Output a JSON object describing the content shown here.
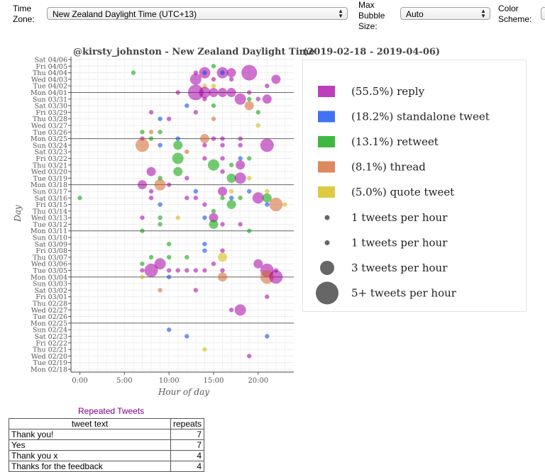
{
  "controls": {
    "timezone_label": "Time\nZone:",
    "timezone_value": "New Zealand Daylight Time (UTC+13)",
    "bubble_label": "Max\nBubble\nSize:",
    "bubble_value": "Auto",
    "scheme_label": "Color\nScheme:"
  },
  "chart_title": "@kirsty_johnston - New Zealand Daylight Time",
  "chart_range": "(2019-02-18 - 2019-04-06)",
  "colors": {
    "reply": "#a500a5",
    "standalone tweet": "#0044ee",
    "retweet": "#00a000",
    "thread": "#d2622a",
    "quote tweet": "#d2b800"
  },
  "chart_data": {
    "type": "scatter",
    "xlabel": "Hour of day",
    "ylabel": "Day",
    "xlim": [
      -1,
      24
    ],
    "x_ticks": [
      "0:00",
      "5:00",
      "10:00",
      "15:00",
      "20:00"
    ],
    "y_labels": [
      "Sat 04/06",
      "Fri 04/05",
      "Thu 04/04",
      "Wed 04/03",
      "Tue 04/02",
      "Mon 04/01",
      "Sun 03/31",
      "Sat 03/30",
      "Fri 03/29",
      "Thu 03/28",
      "Wed 03/27",
      "Tue 03/26",
      "Mon 03/25",
      "Sun 03/24",
      "Sat 03/23",
      "Fri 03/22",
      "Thu 03/21",
      "Wed 03/20",
      "Tue 03/19",
      "Mon 03/18",
      "Sun 03/17",
      "Sat 03/16",
      "Fri 03/15",
      "Thu 03/14",
      "Wed 03/13",
      "Tue 03/12",
      "Mon 03/11",
      "Sun 03/10",
      "Sat 03/09",
      "Fri 03/08",
      "Thu 03/07",
      "Wed 03/06",
      "Tue 03/05",
      "Mon 03/04",
      "Sun 03/03",
      "Sat 03/02",
      "Fri 03/01",
      "Thu 02/28",
      "Wed 02/27",
      "Tue 02/26",
      "Mon 02/25",
      "Sun 02/24",
      "Sat 02/23",
      "Fri 02/22",
      "Thu 02/21",
      "Wed 02/20",
      "Tue 02/19",
      "Mon 02/18"
    ],
    "week_lines": [
      "Mon 04/01",
      "Mon 03/25",
      "Mon 03/18",
      "Mon 03/11",
      "Mon 03/04",
      "Mon 02/25"
    ],
    "legend": [
      {
        "label": "(55.5%) reply",
        "type": "reply"
      },
      {
        "label": "(18.2%) standalone tweet",
        "type": "standalone tweet"
      },
      {
        "label": "(13.1%) retweet",
        "type": "retweet"
      },
      {
        "label": "(8.1%) thread",
        "type": "thread"
      },
      {
        "label": "(5.0%) quote tweet",
        "type": "quote tweet"
      }
    ],
    "size_legend": [
      {
        "label": "1 tweets per hour",
        "count": 1
      },
      {
        "label": "1 tweets per hour",
        "count": 1
      },
      {
        "label": "3 tweets per hour",
        "count": 3
      },
      {
        "label": "5+ tweets per hour",
        "count": 5
      }
    ],
    "points": [
      {
        "day": "Fri 04/05",
        "hour": 15,
        "type": "retweet",
        "count": 1
      },
      {
        "day": "Thu 04/04",
        "hour": 6,
        "type": "retweet",
        "count": 1
      },
      {
        "day": "Thu 04/04",
        "hour": 13,
        "type": "reply",
        "count": 1
      },
      {
        "day": "Thu 04/04",
        "hour": 14,
        "type": "reply",
        "count": 3
      },
      {
        "day": "Thu 04/04",
        "hour": 14,
        "type": "standalone tweet",
        "count": 1
      },
      {
        "day": "Thu 04/04",
        "hour": 16,
        "type": "reply",
        "count": 3
      },
      {
        "day": "Thu 04/04",
        "hour": 16,
        "type": "standalone tweet",
        "count": 1
      },
      {
        "day": "Thu 04/04",
        "hour": 17,
        "type": "reply",
        "count": 2
      },
      {
        "day": "Thu 04/04",
        "hour": 19,
        "type": "reply",
        "count": 5
      },
      {
        "day": "Wed 04/03",
        "hour": 13,
        "type": "reply",
        "count": 3
      },
      {
        "day": "Wed 04/03",
        "hour": 15,
        "type": "reply",
        "count": 1
      },
      {
        "day": "Wed 04/03",
        "hour": 17,
        "type": "reply",
        "count": 1
      },
      {
        "day": "Wed 04/03",
        "hour": 22,
        "type": "reply",
        "count": 2
      },
      {
        "day": "Tue 04/02",
        "hour": 14,
        "type": "quote tweet",
        "count": 1
      },
      {
        "day": "Tue 04/02",
        "hour": 15,
        "type": "quote tweet",
        "count": 1
      },
      {
        "day": "Tue 04/02",
        "hour": 21,
        "type": "reply",
        "count": 1
      },
      {
        "day": "Mon 04/01",
        "hour": 11,
        "type": "reply",
        "count": 1
      },
      {
        "day": "Mon 04/01",
        "hour": 13,
        "type": "reply",
        "count": 5
      },
      {
        "day": "Mon 04/01",
        "hour": 14,
        "type": "reply",
        "count": 3
      },
      {
        "day": "Mon 04/01",
        "hour": 15,
        "type": "reply",
        "count": 2
      },
      {
        "day": "Mon 04/01",
        "hour": 16,
        "type": "reply",
        "count": 2
      },
      {
        "day": "Mon 04/01",
        "hour": 17,
        "type": "reply",
        "count": 2
      },
      {
        "day": "Mon 04/01",
        "hour": 19,
        "type": "reply",
        "count": 1
      },
      {
        "day": "Sun 03/31",
        "hour": 14,
        "type": "reply",
        "count": 1
      },
      {
        "day": "Sun 03/31",
        "hour": 18,
        "type": "reply",
        "count": 3
      },
      {
        "day": "Sun 03/31",
        "hour": 19,
        "type": "retweet",
        "count": 1
      },
      {
        "day": "Sun 03/31",
        "hour": 20,
        "type": "reply",
        "count": 1
      },
      {
        "day": "Sun 03/31",
        "hour": 21,
        "type": "reply",
        "count": 2
      },
      {
        "day": "Sat 03/30",
        "hour": 12,
        "type": "standalone tweet",
        "count": 1
      },
      {
        "day": "Sat 03/30",
        "hour": 15,
        "type": "retweet",
        "count": 1
      },
      {
        "day": "Sat 03/30",
        "hour": 19,
        "type": "thread",
        "count": 2
      },
      {
        "day": "Fri 03/29",
        "hour": 8,
        "type": "reply",
        "count": 1
      },
      {
        "day": "Fri 03/29",
        "hour": 13,
        "type": "reply",
        "count": 1
      },
      {
        "day": "Fri 03/29",
        "hour": 20,
        "type": "retweet",
        "count": 1
      },
      {
        "day": "Thu 03/28",
        "hour": 9,
        "type": "standalone tweet",
        "count": 1
      },
      {
        "day": "Thu 03/28",
        "hour": 10,
        "type": "reply",
        "count": 1
      },
      {
        "day": "Thu 03/28",
        "hour": 15,
        "type": "thread",
        "count": 1
      },
      {
        "day": "Wed 03/27",
        "hour": 20,
        "type": "quote tweet",
        "count": 1
      },
      {
        "day": "Tue 03/26",
        "hour": 7,
        "type": "retweet",
        "count": 1
      },
      {
        "day": "Tue 03/26",
        "hour": 8,
        "type": "thread",
        "count": 1
      },
      {
        "day": "Tue 03/26",
        "hour": 9,
        "type": "retweet",
        "count": 1
      },
      {
        "day": "Mon 03/25",
        "hour": 7,
        "type": "reply",
        "count": 1
      },
      {
        "day": "Mon 03/25",
        "hour": 8,
        "type": "retweet",
        "count": 1
      },
      {
        "day": "Mon 03/25",
        "hour": 11,
        "type": "standalone tweet",
        "count": 1
      },
      {
        "day": "Mon 03/25",
        "hour": 14,
        "type": "thread",
        "count": 2
      },
      {
        "day": "Mon 03/25",
        "hour": 15,
        "type": "reply",
        "count": 1
      },
      {
        "day": "Mon 03/25",
        "hour": 16,
        "type": "reply",
        "count": 1
      },
      {
        "day": "Mon 03/25",
        "hour": 18,
        "type": "reply",
        "count": 1
      },
      {
        "day": "Sun 03/24",
        "hour": 7,
        "type": "thread",
        "count": 4
      },
      {
        "day": "Sun 03/24",
        "hour": 9,
        "type": "standalone tweet",
        "count": 1
      },
      {
        "day": "Sun 03/24",
        "hour": 11,
        "type": "retweet",
        "count": 2
      },
      {
        "day": "Sun 03/24",
        "hour": 14,
        "type": "reply",
        "count": 1
      },
      {
        "day": "Sun 03/24",
        "hour": 16,
        "type": "reply",
        "count": 1
      },
      {
        "day": "Sun 03/24",
        "hour": 18,
        "type": "reply",
        "count": 1
      },
      {
        "day": "Sun 03/24",
        "hour": 21,
        "type": "reply",
        "count": 4
      },
      {
        "day": "Sat 03/23",
        "hour": 12,
        "type": "thread",
        "count": 1
      },
      {
        "day": "Fri 03/22",
        "hour": 11,
        "type": "retweet",
        "count": 3
      },
      {
        "day": "Fri 03/22",
        "hour": 14,
        "type": "reply",
        "count": 1
      },
      {
        "day": "Fri 03/22",
        "hour": 16,
        "type": "reply",
        "count": 1
      },
      {
        "day": "Fri 03/22",
        "hour": 18,
        "type": "standalone tweet",
        "count": 1
      },
      {
        "day": "Fri 03/22",
        "hour": 19,
        "type": "retweet",
        "count": 1
      },
      {
        "day": "Thu 03/21",
        "hour": 15,
        "type": "retweet",
        "count": 3
      },
      {
        "day": "Thu 03/21",
        "hour": 17,
        "type": "retweet",
        "count": 1
      },
      {
        "day": "Thu 03/21",
        "hour": 18,
        "type": "reply",
        "count": 2
      },
      {
        "day": "Wed 03/20",
        "hour": 8,
        "type": "reply",
        "count": 2
      },
      {
        "day": "Wed 03/20",
        "hour": 11,
        "type": "retweet",
        "count": 2
      },
      {
        "day": "Wed 03/20",
        "hour": 16,
        "type": "reply",
        "count": 1
      },
      {
        "day": "Tue 03/19",
        "hour": 9,
        "type": "retweet",
        "count": 1
      },
      {
        "day": "Tue 03/19",
        "hour": 12,
        "type": "reply",
        "count": 1
      },
      {
        "day": "Tue 03/19",
        "hour": 17,
        "type": "retweet",
        "count": 2
      },
      {
        "day": "Tue 03/19",
        "hour": 18,
        "type": "reply",
        "count": 3
      },
      {
        "day": "Tue 03/19",
        "hour": 19,
        "type": "quote tweet",
        "count": 1
      },
      {
        "day": "Mon 03/18",
        "hour": 7,
        "type": "reply",
        "count": 2
      },
      {
        "day": "Mon 03/18",
        "hour": 9,
        "type": "thread",
        "count": 3
      },
      {
        "day": "Mon 03/18",
        "hour": 10,
        "type": "reply",
        "count": 1
      },
      {
        "day": "Sun 03/17",
        "hour": 8,
        "type": "reply",
        "count": 1
      },
      {
        "day": "Sun 03/17",
        "hour": 13,
        "type": "standalone tweet",
        "count": 1
      },
      {
        "day": "Sun 03/17",
        "hour": 16,
        "type": "reply",
        "count": 2
      },
      {
        "day": "Sun 03/17",
        "hour": 17,
        "type": "quote tweet",
        "count": 1
      },
      {
        "day": "Sun 03/17",
        "hour": 19,
        "type": "standalone tweet",
        "count": 1
      },
      {
        "day": "Sun 03/17",
        "hour": 21,
        "type": "quote tweet",
        "count": 1
      },
      {
        "day": "Sat 03/16",
        "hour": 0,
        "type": "retweet",
        "count": 1
      },
      {
        "day": "Sat 03/16",
        "hour": 8,
        "type": "reply",
        "count": 1
      },
      {
        "day": "Sat 03/16",
        "hour": 12,
        "type": "reply",
        "count": 1
      },
      {
        "day": "Sat 03/16",
        "hour": 13,
        "type": "reply",
        "count": 1
      },
      {
        "day": "Sat 03/16",
        "hour": 16,
        "type": "retweet",
        "count": 1
      },
      {
        "day": "Sat 03/16",
        "hour": 17,
        "type": "standalone tweet",
        "count": 1
      },
      {
        "day": "Sat 03/16",
        "hour": 18,
        "type": "retweet",
        "count": 1
      },
      {
        "day": "Sat 03/16",
        "hour": 20,
        "type": "reply",
        "count": 3
      },
      {
        "day": "Sat 03/16",
        "hour": 21,
        "type": "retweet",
        "count": 2
      },
      {
        "day": "Fri 03/15",
        "hour": 9,
        "type": "standalone tweet",
        "count": 1
      },
      {
        "day": "Fri 03/15",
        "hour": 14,
        "type": "reply",
        "count": 1
      },
      {
        "day": "Fri 03/15",
        "hour": 17,
        "type": "retweet",
        "count": 2
      },
      {
        "day": "Fri 03/15",
        "hour": 21,
        "type": "standalone tweet",
        "count": 1
      },
      {
        "day": "Fri 03/15",
        "hour": 22,
        "type": "thread",
        "count": 4
      },
      {
        "day": "Fri 03/15",
        "hour": 23,
        "type": "quote tweet",
        "count": 1
      },
      {
        "day": "Thu 03/14",
        "hour": 15,
        "type": "retweet",
        "count": 1
      },
      {
        "day": "Wed 03/13",
        "hour": 7,
        "type": "reply",
        "count": 1
      },
      {
        "day": "Wed 03/13",
        "hour": 9,
        "type": "retweet",
        "count": 1
      },
      {
        "day": "Wed 03/13",
        "hour": 11,
        "type": "quote tweet",
        "count": 1
      },
      {
        "day": "Wed 03/13",
        "hour": 14,
        "type": "standalone tweet",
        "count": 1
      },
      {
        "day": "Wed 03/13",
        "hour": 15,
        "type": "reply",
        "count": 2
      },
      {
        "day": "Tue 03/12",
        "hour": 9,
        "type": "retweet",
        "count": 1
      },
      {
        "day": "Tue 03/12",
        "hour": 15,
        "type": "retweet",
        "count": 2
      },
      {
        "day": "Tue 03/12",
        "hour": 16,
        "type": "reply",
        "count": 1
      },
      {
        "day": "Tue 03/12",
        "hour": 18,
        "type": "reply",
        "count": 1
      },
      {
        "day": "Mon 03/11",
        "hour": 7,
        "type": "retweet",
        "count": 1
      },
      {
        "day": "Mon 03/11",
        "hour": 19,
        "type": "retweet",
        "count": 1
      },
      {
        "day": "Sat 03/09",
        "hour": 10,
        "type": "retweet",
        "count": 1
      },
      {
        "day": "Sat 03/09",
        "hour": 14,
        "type": "standalone tweet",
        "count": 1
      },
      {
        "day": "Fri 03/08",
        "hour": 14,
        "type": "standalone tweet",
        "count": 1
      },
      {
        "day": "Fri 03/08",
        "hour": 16,
        "type": "reply",
        "count": 1
      },
      {
        "day": "Thu 03/07",
        "hour": 8,
        "type": "retweet",
        "count": 1
      },
      {
        "day": "Thu 03/07",
        "hour": 10,
        "type": "retweet",
        "count": 1
      },
      {
        "day": "Thu 03/07",
        "hour": 12,
        "type": "retweet",
        "count": 1
      },
      {
        "day": "Thu 03/07",
        "hour": 16,
        "type": "quote tweet",
        "count": 2
      },
      {
        "day": "Wed 03/06",
        "hour": 7,
        "type": "retweet",
        "count": 1
      },
      {
        "day": "Wed 03/06",
        "hour": 9,
        "type": "reply",
        "count": 3
      },
      {
        "day": "Wed 03/06",
        "hour": 15,
        "type": "reply",
        "count": 1
      },
      {
        "day": "Wed 03/06",
        "hour": 20,
        "type": "reply",
        "count": 2
      },
      {
        "day": "Tue 03/05",
        "hour": 7,
        "type": "reply",
        "count": 1
      },
      {
        "day": "Tue 03/05",
        "hour": 8,
        "type": "reply",
        "count": 4
      },
      {
        "day": "Tue 03/05",
        "hour": 10,
        "type": "reply",
        "count": 1
      },
      {
        "day": "Tue 03/05",
        "hour": 11,
        "type": "reply",
        "count": 1
      },
      {
        "day": "Tue 03/05",
        "hour": 12,
        "type": "reply",
        "count": 1
      },
      {
        "day": "Tue 03/05",
        "hour": 13,
        "type": "reply",
        "count": 1
      },
      {
        "day": "Tue 03/05",
        "hour": 14,
        "type": "reply",
        "count": 1
      },
      {
        "day": "Tue 03/05",
        "hour": 16,
        "type": "reply",
        "count": 1
      },
      {
        "day": "Tue 03/05",
        "hour": 21,
        "type": "reply",
        "count": 4
      },
      {
        "day": "Tue 03/05",
        "hour": 22,
        "type": "reply",
        "count": 1
      },
      {
        "day": "Mon 03/04",
        "hour": 7,
        "type": "quote tweet",
        "count": 1
      },
      {
        "day": "Mon 03/04",
        "hour": 10,
        "type": "standalone tweet",
        "count": 1
      },
      {
        "day": "Mon 03/04",
        "hour": 16,
        "type": "thread",
        "count": 2
      },
      {
        "day": "Mon 03/04",
        "hour": 21,
        "type": "thread",
        "count": 4
      },
      {
        "day": "Mon 03/04",
        "hour": 22,
        "type": "reply",
        "count": 4
      },
      {
        "day": "Sat 03/02",
        "hour": 9,
        "type": "thread",
        "count": 1
      },
      {
        "day": "Sat 03/02",
        "hour": 13,
        "type": "reply",
        "count": 1
      },
      {
        "day": "Fri 03/01",
        "hour": 21,
        "type": "reply",
        "count": 1
      },
      {
        "day": "Wed 02/27",
        "hour": 17,
        "type": "reply",
        "count": 1
      },
      {
        "day": "Wed 02/27",
        "hour": 18,
        "type": "reply",
        "count": 3
      },
      {
        "day": "Sun 02/24",
        "hour": 10,
        "type": "standalone tweet",
        "count": 1
      },
      {
        "day": "Sat 02/23",
        "hour": 12,
        "type": "standalone tweet",
        "count": 1
      },
      {
        "day": "Sat 02/23",
        "hour": 21,
        "type": "standalone tweet",
        "count": 1
      },
      {
        "day": "Thu 02/21",
        "hour": 14,
        "type": "quote tweet",
        "count": 1
      },
      {
        "day": "Wed 02/20",
        "hour": 19,
        "type": "reply",
        "count": 1
      }
    ]
  },
  "repeated": {
    "title": "Repeated Tweets",
    "headers": [
      "tweet text",
      "repeats"
    ],
    "rows": [
      {
        "text": "Thank you!",
        "n": "7"
      },
      {
        "text": "Yes",
        "n": "7"
      },
      {
        "text": "Thank you x",
        "n": "4"
      },
      {
        "text": "Thanks for the feedback",
        "n": "4"
      }
    ]
  }
}
